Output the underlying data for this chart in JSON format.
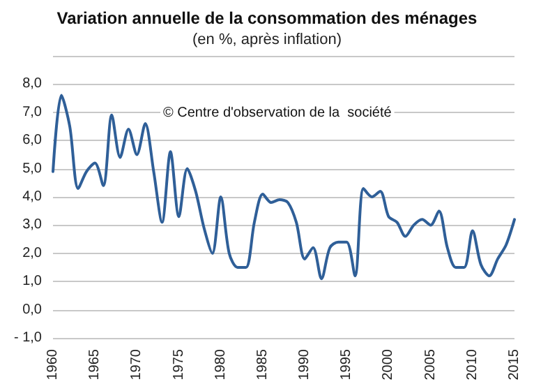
{
  "chart_data": {
    "type": "line",
    "title": "Variation annuelle de la consommation des ménages",
    "subtitle": "(en %, après inflation)",
    "annotations": [
      "© Centre d'observation de la  société"
    ],
    "x": [
      1960,
      1961,
      1962,
      1963,
      1964,
      1965,
      1966,
      1967,
      1968,
      1969,
      1970,
      1971,
      1972,
      1973,
      1974,
      1975,
      1976,
      1977,
      1978,
      1979,
      1980,
      1981,
      1982,
      1983,
      1984,
      1985,
      1986,
      1987,
      1988,
      1989,
      1990,
      1991,
      1992,
      1993,
      1994,
      1995,
      1996,
      1997,
      1998,
      1999,
      2000,
      2001,
      2002,
      2003,
      2004,
      2005,
      2006,
      2007,
      2008,
      2009,
      2010,
      2011,
      2012,
      2013,
      2014,
      2015
    ],
    "series": [
      {
        "color": "#2f5f98",
        "values": [
          4.9,
          7.6,
          6.5,
          4.3,
          4.9,
          5.2,
          4.4,
          6.9,
          5.4,
          6.4,
          5.5,
          6.6,
          4.9,
          3.1,
          5.6,
          3.3,
          5.0,
          4.2,
          2.9,
          2.0,
          4.0,
          2.0,
          1.5,
          1.5,
          3.1,
          4.1,
          3.8,
          3.9,
          3.8,
          3.1,
          1.8,
          2.2,
          1.1,
          2.2,
          2.4,
          2.4,
          1.2,
          4.3,
          4.0,
          4.2,
          3.3,
          3.1,
          2.6,
          3.0,
          3.2,
          3.0,
          3.5,
          2.2,
          1.5,
          1.5,
          2.8,
          1.6,
          1.2,
          1.8,
          2.3,
          3.2
        ]
      }
    ],
    "xlim": [
      1960,
      2015
    ],
    "xticks": [
      1960,
      1965,
      1970,
      1975,
      1980,
      1985,
      1990,
      1995,
      2000,
      2005,
      2010,
      2015
    ],
    "ylim": [
      -1,
      9
    ],
    "yticks": [
      {
        "value": -1,
        "label": "- 1,0"
      },
      {
        "value": 0,
        "label": "0,0"
      },
      {
        "value": 1,
        "label": "1,0"
      },
      {
        "value": 2,
        "label": "2,0"
      },
      {
        "value": 3,
        "label": "3,0"
      },
      {
        "value": 4,
        "label": "4,0"
      },
      {
        "value": 5,
        "label": "5,0"
      },
      {
        "value": 6,
        "label": "6,0"
      },
      {
        "value": 7,
        "label": "7,0"
      },
      {
        "value": 8,
        "label": "8,0"
      },
      {
        "value": 9,
        "label": null
      }
    ],
    "grid": "y",
    "marker": "none",
    "line_style": "solid"
  }
}
